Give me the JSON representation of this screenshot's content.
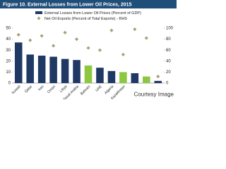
{
  "chart_data": {
    "type": "bar_scatter",
    "title": "Figure 10. External Losses from Lower Oil Prices, 2015",
    "categories": [
      "Kuwait",
      "Qatar",
      "Iran",
      "Oman",
      "Libya",
      "Saudi Arabia",
      "Bahrain",
      "UAE",
      "Algeria",
      "Kazakhstan",
      null,
      null,
      null
    ],
    "series": [
      {
        "name": "External Losses from Lower Oil Prices (Percent of GDP)",
        "color": "#1f3864",
        "bar_colors": [
          "#1f3864",
          "#1f3864",
          "#1f3864",
          "#1f3864",
          "#1f3864",
          "#1f3864",
          "#8dc63f",
          "#1f3864",
          "#1f3864",
          "#8dc63f",
          "#1f3864",
          "#8dc63f",
          "#1f3864"
        ],
        "values": [
          37,
          26,
          25,
          24,
          22,
          21,
          16,
          14,
          11,
          10,
          9,
          6,
          2
        ]
      },
      {
        "name": "Net Oil Exports (Percent of Total Exports) - RHS",
        "color": "#a8a07a",
        "axis": "y2",
        "values": [
          88,
          78,
          86,
          68,
          92,
          80,
          64,
          60,
          96,
          52,
          98,
          82,
          12
        ]
      }
    ],
    "ylim": [
      0,
      50
    ],
    "yticks": [
      0,
      10,
      20,
      30,
      40,
      50
    ],
    "y2lim": [
      0,
      100
    ],
    "y2ticks": [
      0,
      20,
      40,
      60,
      80,
      100
    ],
    "watermark": "Courtesy Image"
  }
}
